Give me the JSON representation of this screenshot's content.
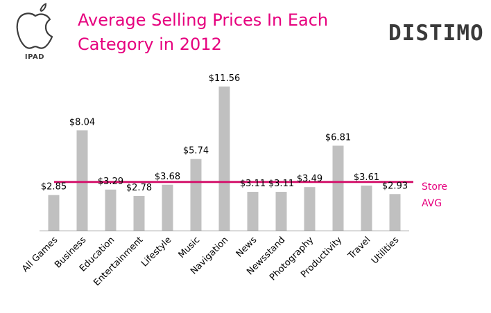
{
  "header": {
    "platform_label": "IPAD",
    "title_line1": "Average Selling Prices In Each",
    "title_line2": "Category in 2012",
    "brand": "DISTIMO",
    "icons": {
      "platform": "apple-logo-icon"
    }
  },
  "colors": {
    "title": "#e6007e",
    "bar": "#c0c0c0",
    "avg_line": "#d4146c",
    "axis": "#999999",
    "text": "#000000"
  },
  "chart_data": {
    "type": "bar",
    "title": "Average Selling Prices In Each Category in 2012",
    "categories": [
      "All Games",
      "Business",
      "Education",
      "Entertainment",
      "Lifestyle",
      "Music",
      "Navigation",
      "News",
      "Newsstand",
      "Photography",
      "Productivity",
      "Travel",
      "Utilities"
    ],
    "values": [
      2.85,
      8.04,
      3.29,
      2.78,
      3.68,
      5.74,
      11.56,
      3.11,
      3.11,
      3.49,
      6.81,
      3.61,
      2.93
    ],
    "value_labels": [
      "$2.85",
      "$8.04",
      "$3.29",
      "$2.78",
      "$3.68",
      "$5.74",
      "$11.56",
      "$3.11",
      "$3.11",
      "$3.49",
      "$6.81",
      "$3.61",
      "$2.93"
    ],
    "reference_line": {
      "value": 3.9,
      "label_line1": "Store",
      "label_line2": "AVG"
    },
    "xlabel": "",
    "ylabel": "",
    "ylim": [
      0,
      12
    ],
    "grid": false,
    "legend": "none"
  }
}
